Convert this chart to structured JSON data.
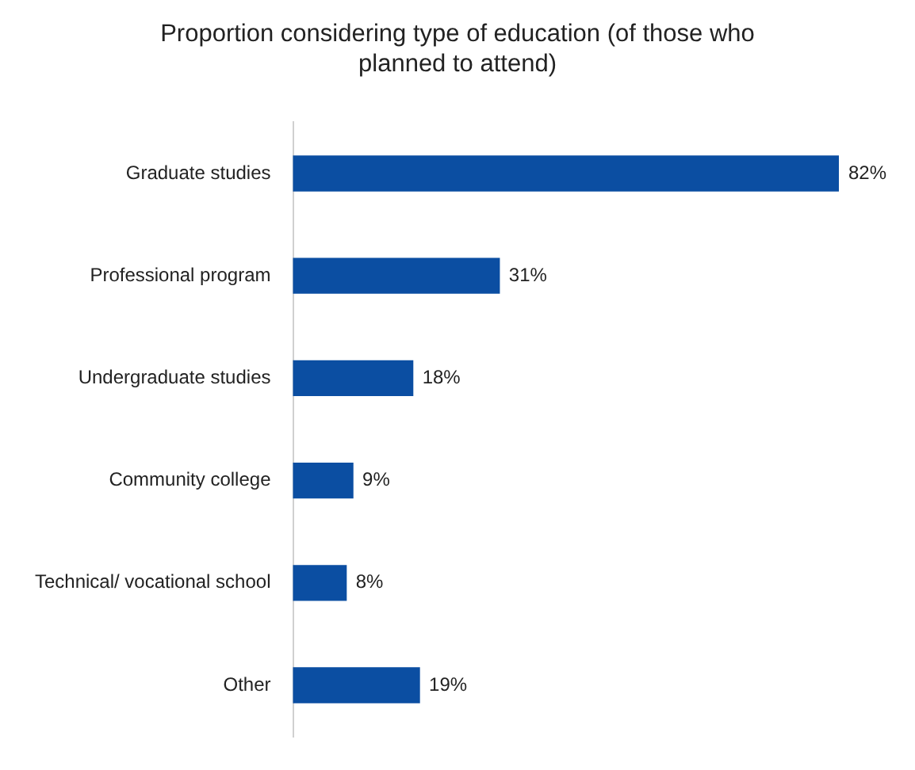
{
  "chart_data": {
    "type": "bar",
    "orientation": "horizontal",
    "title": "Proportion considering type of education (of those who planned to attend)",
    "categories": [
      "Graduate studies",
      "Professional program",
      "Undergraduate studies",
      "Community college",
      "Technical/ vocational school",
      "Other"
    ],
    "values": [
      82,
      31,
      18,
      9,
      8,
      19
    ],
    "value_labels": [
      "82%",
      "31%",
      "18%",
      "9%",
      "8%",
      "19%"
    ],
    "color": "#0b4ea2",
    "legend": false
  }
}
